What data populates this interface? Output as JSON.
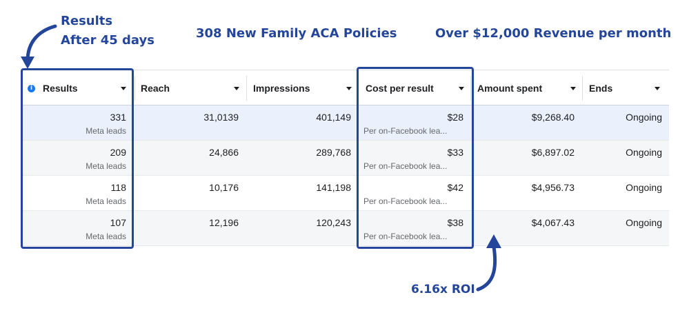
{
  "annotations": {
    "results_line1": "Results",
    "results_line2": "After 45 days",
    "policies": "308 New Family ACA Policies",
    "revenue": "Over $12,000 Revenue per month",
    "roi": "6.16x ROI"
  },
  "table": {
    "headers": {
      "results": "Results",
      "reach": "Reach",
      "impressions": "Impressions",
      "cost_per_result": "Cost per result",
      "amount_spent": "Amount spent",
      "ends": "Ends"
    },
    "rows": [
      {
        "results": "331",
        "results_sub": "Meta leads",
        "reach": "31,0139",
        "impressions": "401,149",
        "cpr": "$28",
        "cpr_sub": "Per on-Facebook lea...",
        "amount": "$9,268.40",
        "ends": "Ongoing"
      },
      {
        "results": "209",
        "results_sub": "Meta leads",
        "reach": "24,866",
        "impressions": "289,768",
        "cpr": "$33",
        "cpr_sub": "Per on-Facebook lea...",
        "amount": "$6,897.02",
        "ends": "Ongoing"
      },
      {
        "results": "118",
        "results_sub": "Meta leads",
        "reach": "10,176",
        "impressions": "141,198",
        "cpr": "$42",
        "cpr_sub": "Per on-Facebook lea...",
        "amount": "$4,956.73",
        "ends": "Ongoing"
      },
      {
        "results": "107",
        "results_sub": "Meta leads",
        "reach": "12,196",
        "impressions": "120,243",
        "cpr": "$38",
        "cpr_sub": "Per on-Facebook lea...",
        "amount": "$4,067.43",
        "ends": "Ongoing"
      }
    ]
  },
  "colors": {
    "annotation": "#24469a",
    "info_icon": "#1877f2",
    "highlight_row": "#ebf1fc"
  }
}
